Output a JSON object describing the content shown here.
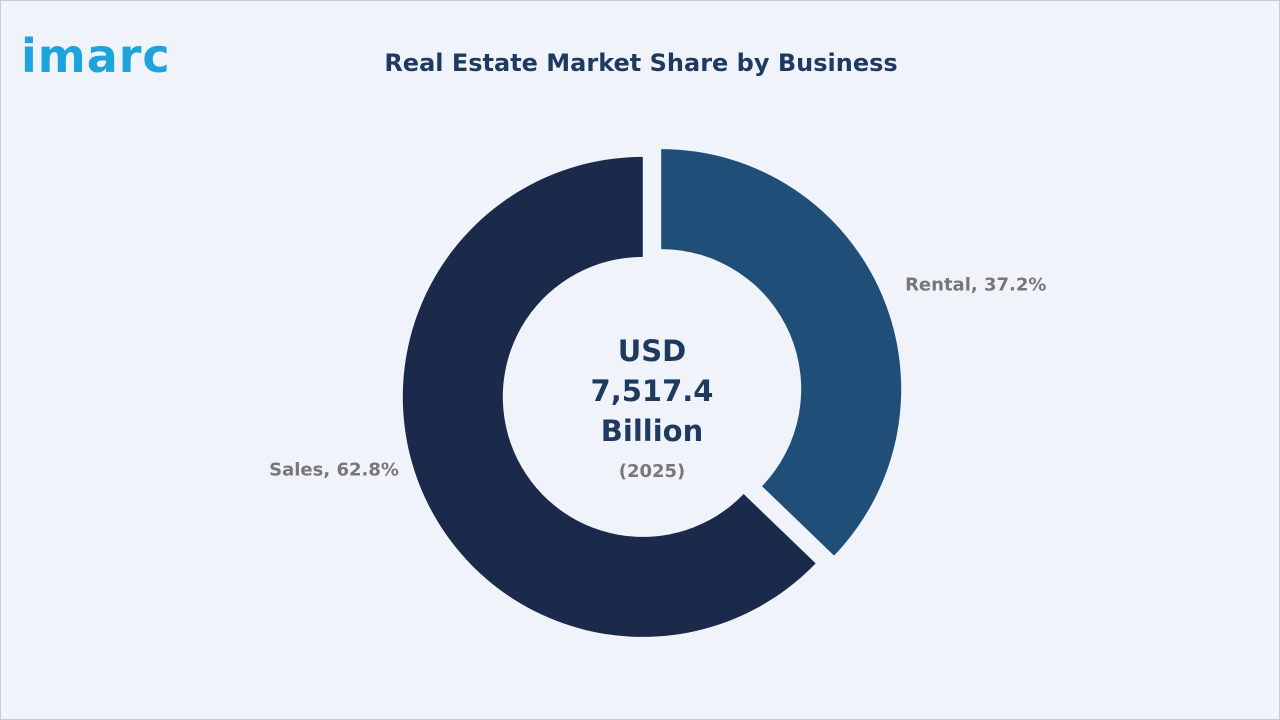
{
  "logo": "imarc",
  "chart_data": {
    "type": "donut",
    "title": "Real Estate Market Share by Business",
    "values": [
      37.2,
      62.8
    ],
    "value_labels": [
      "Rental, 37.2%",
      "Sales, 62.8%"
    ],
    "colors": [
      "#1f4e79",
      "#1b2a4a"
    ],
    "center_label": "USD 7,517.4 Billion",
    "center_sublabel": "(2025)"
  }
}
